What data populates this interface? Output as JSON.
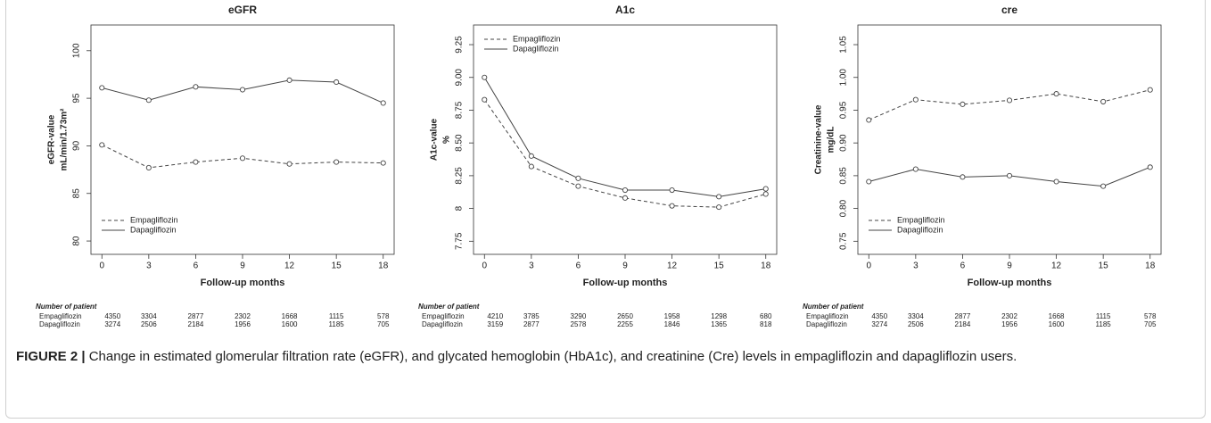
{
  "chart_data": [
    {
      "type": "line",
      "title": "eGFR",
      "ylabel": [
        "eGFR-value",
        "mL/min/1.73m²"
      ],
      "xlabel": "Follow-up months",
      "x": [
        0,
        3,
        6,
        9,
        12,
        15,
        18
      ],
      "xlim": [
        -0.7,
        18.7
      ],
      "xticks": [
        0,
        3,
        6,
        9,
        12,
        15,
        18
      ],
      "ylim": [
        78.6,
        102.7
      ],
      "yticks": [
        80,
        85,
        90,
        95,
        100
      ],
      "legend": "bottomleft",
      "series": [
        {
          "name": "Empagliflozin",
          "color": "#444444",
          "linestyle": "dashed",
          "values": [
            90.1,
            87.7,
            88.3,
            88.7,
            88.1,
            88.3,
            88.2
          ]
        },
        {
          "name": "Dapagliflozin",
          "color": "#444444",
          "linestyle": "solid",
          "values": [
            96.1,
            94.8,
            96.2,
            95.9,
            96.9,
            96.7,
            94.5
          ]
        }
      ],
      "patients": {
        "title": "Number of patient",
        "rows": [
          {
            "name": "Empagliflozin",
            "counts": [
              4350,
              3304,
              2877,
              2302,
              1668,
              1115,
              578
            ]
          },
          {
            "name": "Dapagliflozin",
            "counts": [
              3274,
              2506,
              2184,
              1956,
              1600,
              1185,
              705
            ]
          }
        ]
      }
    },
    {
      "type": "line",
      "title": "A1c",
      "ylabel": [
        "A1c-value",
        "%"
      ],
      "xlabel": "Follow-up months",
      "x": [
        0,
        3,
        6,
        9,
        12,
        15,
        18
      ],
      "xlim": [
        -0.7,
        18.7
      ],
      "xticks": [
        0,
        3,
        6,
        9,
        12,
        15,
        18
      ],
      "ylim": [
        7.65,
        9.4
      ],
      "yticks": [
        7.75,
        8,
        {
          "value": 8.25,
          "label": "8.25"
        },
        {
          "value": 8.5,
          "label": "8.50"
        },
        8.75,
        {
          "value": 9,
          "label": "9.00"
        },
        9.25
      ],
      "legend": "topleft",
      "series": [
        {
          "name": "Empagliflozin",
          "color": "#444444",
          "linestyle": "dashed",
          "values": [
            8.83,
            8.32,
            8.17,
            8.08,
            8.02,
            8.01,
            8.11
          ]
        },
        {
          "name": "Dapagliflozin",
          "color": "#444444",
          "linestyle": "solid",
          "values": [
            9.0,
            8.4,
            8.23,
            8.14,
            8.14,
            8.09,
            8.15
          ]
        }
      ],
      "patients": {
        "title": "Number of patient",
        "rows": [
          {
            "name": "Empagliflozin",
            "counts": [
              4210,
              3785,
              3290,
              2650,
              1958,
              1298,
              680
            ]
          },
          {
            "name": "Dapagliflozin",
            "counts": [
              3159,
              2877,
              2578,
              2255,
              1846,
              1365,
              818
            ]
          }
        ]
      }
    },
    {
      "type": "line",
      "title": "cre",
      "ylabel": [
        "Creatinine-value",
        "mg/dL"
      ],
      "xlabel": "Follow-up months",
      "x": [
        0,
        3,
        6,
        9,
        12,
        15,
        18
      ],
      "xlim": [
        -0.7,
        18.7
      ],
      "xticks": [
        0,
        3,
        6,
        9,
        12,
        15,
        18
      ],
      "ylim": [
        0.73,
        1.08
      ],
      "yticks": [
        0.75,
        {
          "value": 0.8,
          "label": "0.80"
        },
        0.85,
        {
          "value": 0.9,
          "label": "0.90"
        },
        0.95,
        {
          "value": 1,
          "label": "1.00"
        },
        1.05
      ],
      "legend": "bottomleft",
      "series": [
        {
          "name": "Empagliflozin",
          "color": "#444444",
          "linestyle": "dashed",
          "values": [
            0.935,
            0.966,
            0.959,
            0.965,
            0.975,
            0.963,
            0.981
          ]
        },
        {
          "name": "Dapagliflozin",
          "color": "#444444",
          "linestyle": "solid",
          "values": [
            0.841,
            0.86,
            0.848,
            0.85,
            0.841,
            0.834,
            0.863
          ]
        }
      ],
      "patients": {
        "title": "Number of patient",
        "rows": [
          {
            "name": "Empagliflozin",
            "counts": [
              4350,
              3304,
              2877,
              2302,
              1668,
              1115,
              578
            ]
          },
          {
            "name": "Dapagliflozin",
            "counts": [
              3274,
              2506,
              2184,
              1956,
              1600,
              1185,
              705
            ]
          }
        ]
      }
    }
  ],
  "caption": {
    "label": "FIGURE 2 |",
    "text": "Change in estimated glomerular filtration rate (eGFR), and glycated hemoglobin (HbA1c), and creatinine (Cre) levels in empagliflozin and dapagliflozin users."
  }
}
